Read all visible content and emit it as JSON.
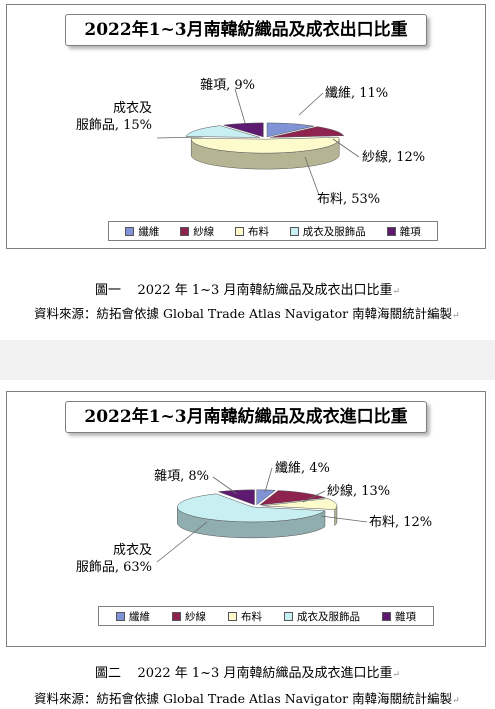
{
  "colors": {
    "纖維": "#8093d6",
    "紗線": "#8e2350",
    "布料": "#fdfbcc",
    "成衣及服飾品": "#c8f0f3",
    "雜項": "#5e1a70"
  },
  "figures": [
    {
      "caption_label": "圖一",
      "caption_text": "2022 年 1~3 月南韓紡織品及成衣出口比重",
      "source": "資料來源：紡拓會依據 Global Trade Atlas Navigator 南韓海關統計編製",
      "mark": "↵"
    },
    {
      "caption_label": "圖二",
      "caption_text": "2022 年 1~3 月南韓紡織品及成衣進口比重",
      "source": "資料來源：紡拓會依據 Global Trade Atlas Navigator 南韓海關統計編製",
      "mark": "↵"
    }
  ],
  "chart_data": [
    {
      "type": "pie",
      "title": "2022年1~3月南韓紡織品及成衣出口比重",
      "categories": [
        "纖維",
        "紗線",
        "布料",
        "成衣及服飾品",
        "雜項"
      ],
      "values": [
        11,
        12,
        53,
        15,
        9
      ],
      "unit": "%",
      "data_labels": [
        "纖維, 11%",
        "紗線, 12%",
        "布料, 53%",
        "成衣及服飾品, 15%",
        "雜項, 9%"
      ],
      "legend": [
        "纖維",
        "紗線",
        "布料",
        "成衣及服飾品",
        "雜項"
      ],
      "legend_position": "bottom",
      "style": "3d"
    },
    {
      "type": "pie",
      "title": "2022年1~3月南韓紡織品及成衣進口比重",
      "categories": [
        "纖維",
        "紗線",
        "布料",
        "成衣及服飾品",
        "雜項"
      ],
      "values": [
        4,
        13,
        12,
        63,
        8
      ],
      "unit": "%",
      "data_labels": [
        "纖維, 4%",
        "紗線, 13%",
        "布料, 12%",
        "成衣及服飾品, 63%",
        "雜項, 8%"
      ],
      "legend": [
        "纖維",
        "紗線",
        "布料",
        "成衣及服飾品",
        "雜項"
      ],
      "legend_position": "bottom",
      "style": "3d"
    }
  ]
}
